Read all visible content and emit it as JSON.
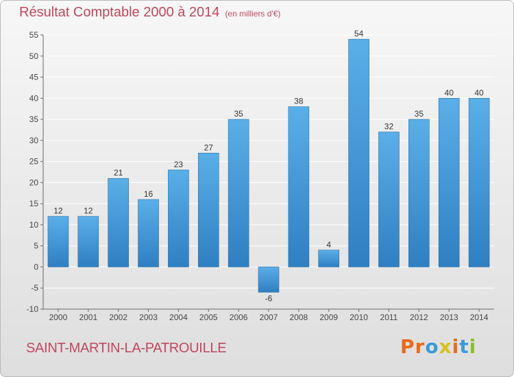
{
  "title": "Résultat Comptable 2000 à 2014",
  "subtitle": "(en milliers d'€)",
  "commune": "SAINT-MARTIN-LA-PATROUILLE",
  "logo": {
    "text": "Proxiti",
    "colors": [
      "#e86a1c",
      "#e86a1c",
      "#3a9ad9",
      "#d7c11e",
      "#e86a1c",
      "#3a9ad9",
      "#88bf2a"
    ]
  },
  "colors": {
    "bar_light": "#5aafe8",
    "bar_dark": "#2f7fc2",
    "grid": "#ffffff",
    "title": "#c0475b"
  },
  "chart_data": {
    "type": "bar",
    "title": "Résultat Comptable 2000 à 2014",
    "subtitle": "(en milliers d'€)",
    "xlabel": "",
    "ylabel": "",
    "categories": [
      "2000",
      "2001",
      "2002",
      "2003",
      "2004",
      "2005",
      "2006",
      "2007",
      "2008",
      "2009",
      "2010",
      "2011",
      "2012",
      "2013",
      "2014"
    ],
    "values": [
      12,
      12,
      21,
      16,
      23,
      27,
      35,
      -6,
      38,
      4,
      54,
      32,
      35,
      40,
      40
    ],
    "ylim": [
      -10,
      55
    ],
    "yticks": [
      -10,
      -5,
      0,
      5,
      10,
      15,
      20,
      25,
      30,
      35,
      40,
      45,
      50,
      55
    ],
    "grid": true
  }
}
